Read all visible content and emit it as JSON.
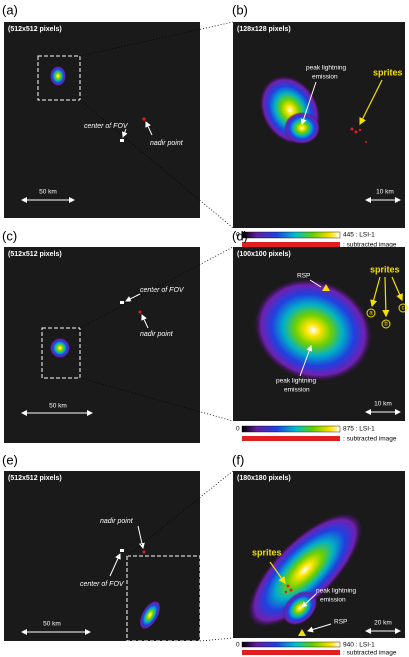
{
  "panels": [
    {
      "label": "(a)",
      "resolution": "(512x512 pixels)",
      "fov": "center of FOV",
      "nadir": "nadir point",
      "scale": "50 km"
    },
    {
      "label": "(b)",
      "resolution": "(128x128 pixels)",
      "peak": [
        "peak lightning",
        "emission"
      ],
      "sprites": "sprites",
      "scale": "10 km",
      "colorbar": {
        "min": "0",
        "max": "445 : LSI-1",
        "subtracted": ": subtracted image"
      }
    },
    {
      "label": "(c)",
      "resolution": "(512x512 pixels)",
      "fov": "center of FOV",
      "nadir": "nadir point",
      "scale": "50 km"
    },
    {
      "label": "(d)",
      "resolution": "(100x100 pixels)",
      "rsp": "RSP",
      "sprites": "sprites",
      "sprite_ids": [
        "a",
        "b",
        "c"
      ],
      "peak": [
        "peak lightning",
        "emission"
      ],
      "scale": "10 km",
      "colorbar": {
        "min": "0",
        "max": "875 : LSI-1",
        "subtracted": ": subtracted image"
      }
    },
    {
      "label": "(e)",
      "resolution": "(512x512 pixels)",
      "nadir": "nadir point",
      "fov": "center of FOV",
      "scale": "50 km"
    },
    {
      "label": "(f)",
      "resolution": "(180x180 pixels)",
      "sprites": "sprites",
      "peak": [
        "peak lightning",
        "emission"
      ],
      "rsp": "RSP",
      "scale": "20 km",
      "colorbar": {
        "min": "0",
        "max": "940 : LSI-1",
        "subtracted": ": subtracted image"
      }
    }
  ]
}
